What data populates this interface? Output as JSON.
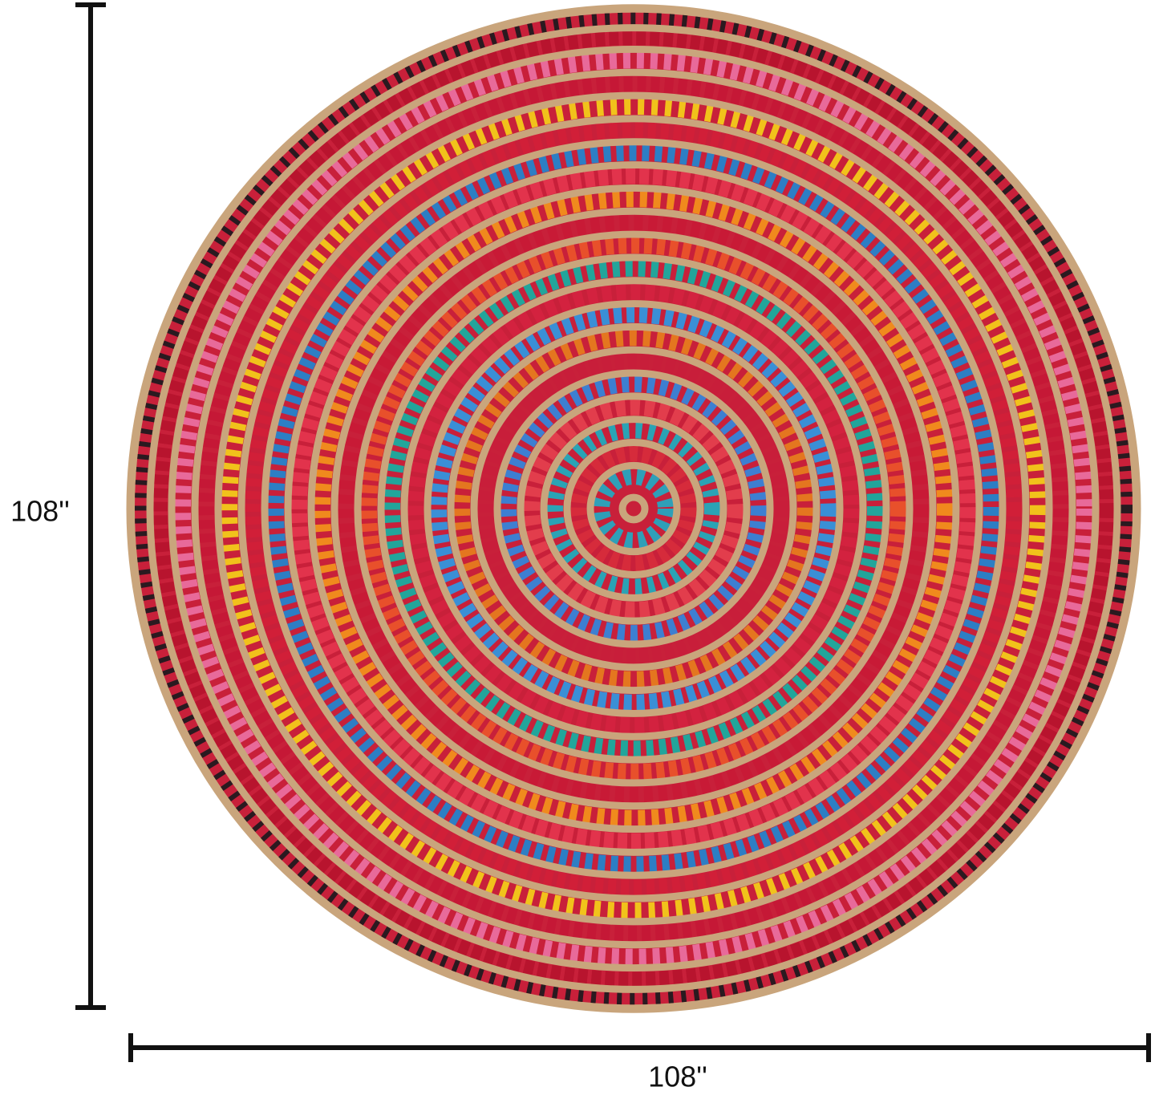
{
  "dimensions": {
    "height": "108''",
    "width": "108''"
  }
}
